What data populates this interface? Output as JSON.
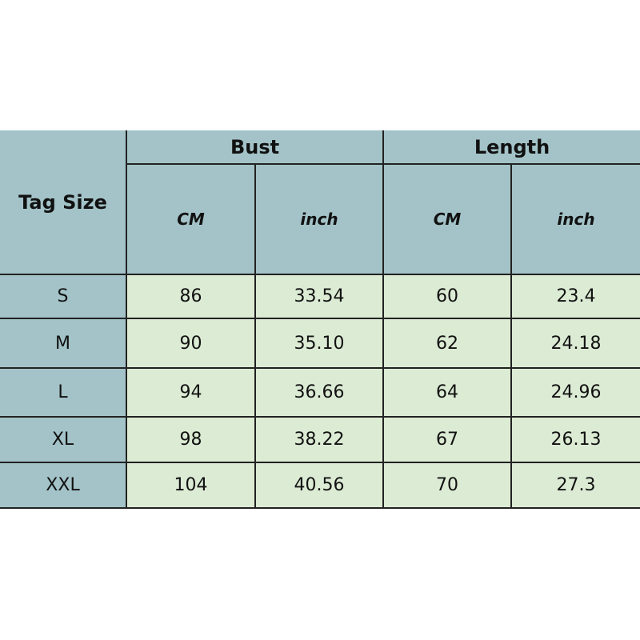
{
  "headers": {
    "tag_size": "Tag Size",
    "bust": "Bust",
    "length": "Length",
    "cm": "CM",
    "inch": "inch"
  },
  "colors": {
    "header_bg": "#a3c3c8",
    "data_bg": "#dcebd4"
  },
  "rows": [
    {
      "size": "S",
      "bust_cm": "86",
      "bust_inch": "33.54",
      "length_cm": "60",
      "length_inch": "23.4"
    },
    {
      "size": "M",
      "bust_cm": "90",
      "bust_inch": "35.10",
      "length_cm": "62",
      "length_inch": "24.18"
    },
    {
      "size": "L",
      "bust_cm": "94",
      "bust_inch": "36.66",
      "length_cm": "64",
      "length_inch": "24.96"
    },
    {
      "size": "XL",
      "bust_cm": "98",
      "bust_inch": "38.22",
      "length_cm": "67",
      "length_inch": "26.13"
    },
    {
      "size": "XXL",
      "bust_cm": "104",
      "bust_inch": "40.56",
      "length_cm": "70",
      "length_inch": "27.3"
    }
  ]
}
